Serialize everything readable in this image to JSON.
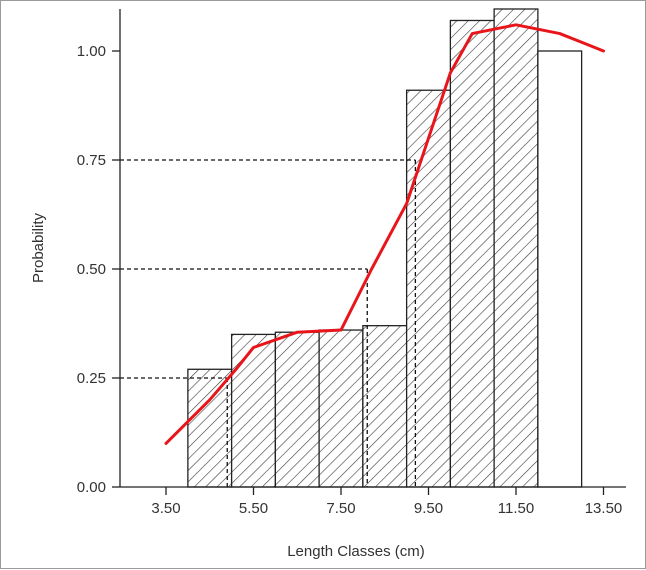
{
  "chart_data": {
    "type": "bar",
    "xlabel": "Length Classes (cm)",
    "ylabel": "Probability",
    "xlim": [
      2.5,
      14.0
    ],
    "ylim": [
      0,
      1.1
    ],
    "x_ticks": [
      3.5,
      5.5,
      7.5,
      9.5,
      11.5,
      13.5
    ],
    "x_tick_labels": [
      "3.50",
      "5.50",
      "7.50",
      "9.50",
      "11.50",
      "13.50"
    ],
    "y_ticks": [
      0.0,
      0.25,
      0.5,
      0.75,
      1.0
    ],
    "y_tick_labels": [
      "0.00",
      "0.25",
      "0.50",
      "0.75",
      "1.00"
    ],
    "bars": [
      {
        "left": 4.0,
        "right": 5.0,
        "value": 0.27,
        "hatched": true
      },
      {
        "left": 5.0,
        "right": 6.0,
        "value": 0.35,
        "hatched": true
      },
      {
        "left": 6.0,
        "right": 7.0,
        "value": 0.355,
        "hatched": true
      },
      {
        "left": 7.0,
        "right": 8.0,
        "value": 0.36,
        "hatched": true
      },
      {
        "left": 8.0,
        "right": 9.0,
        "value": 0.37,
        "hatched": true
      },
      {
        "left": 9.0,
        "right": 10.0,
        "value": 0.91,
        "hatched": true
      },
      {
        "left": 10.0,
        "right": 11.0,
        "value": 1.07,
        "hatched": true
      },
      {
        "left": 11.0,
        "right": 12.0,
        "value": 1.1,
        "hatched": true
      },
      {
        "left": 12.0,
        "right": 13.0,
        "value": 1.0,
        "hatched": false
      }
    ],
    "series": [
      {
        "type": "line",
        "color": "#e8161b",
        "x": [
          3.5,
          4.5,
          5.1,
          5.5,
          6.5,
          7.5,
          8.2,
          9.0,
          9.5,
          10.0,
          10.5,
          11.0,
          11.5,
          12.0,
          12.5,
          13.0,
          13.5
        ],
        "y": [
          0.1,
          0.2,
          0.27,
          0.32,
          0.355,
          0.36,
          0.5,
          0.65,
          0.8,
          0.95,
          1.04,
          1.05,
          1.06,
          1.05,
          1.04,
          1.02,
          1.0
        ]
      }
    ],
    "reference_lines": [
      {
        "y": 0.25,
        "x": 4.9
      },
      {
        "y": 0.5,
        "x": 8.1
      },
      {
        "y": 0.75,
        "x": 9.2
      }
    ],
    "grid": false,
    "legend": "none"
  }
}
